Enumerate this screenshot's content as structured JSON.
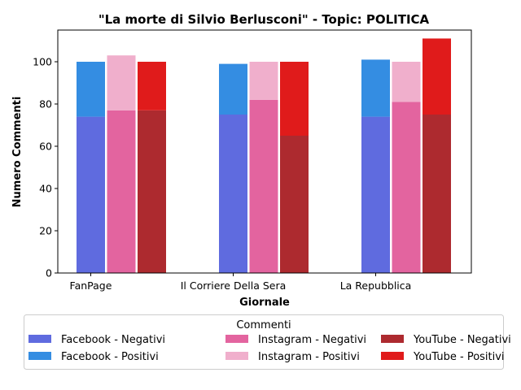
{
  "chart_data": {
    "type": "bar",
    "title": "\"La morte di Silvio Berlusconi\" - Topic: POLITICA",
    "xlabel": "Giornale",
    "ylabel": "Numero Commenti",
    "categories": [
      "FanPage",
      "Il Corriere Della Sera",
      "La Repubblica"
    ],
    "ylim": [
      0,
      115
    ],
    "yticks": [
      0,
      20,
      40,
      60,
      80,
      100
    ],
    "grid": false,
    "stacked_pairs": true,
    "groups": [
      {
        "name": "Facebook",
        "negative_color": "#5f6bdf",
        "positive_color": "#348de2"
      },
      {
        "name": "Instagram",
        "negative_color": "#e3649f",
        "positive_color": "#f0afcc"
      },
      {
        "name": "YouTube",
        "negative_color": "#ad2a2f",
        "positive_color": "#e01b1b"
      }
    ],
    "series": [
      {
        "name": "Facebook - Negativi",
        "group": 0,
        "kind": "negative",
        "values": [
          74,
          75,
          74
        ]
      },
      {
        "name": "Facebook - Positivi",
        "group": 0,
        "kind": "positive",
        "values": [
          26,
          24,
          27
        ]
      },
      {
        "name": "Instagram - Negativi",
        "group": 1,
        "kind": "negative",
        "values": [
          77,
          82,
          81
        ]
      },
      {
        "name": "Instagram - Positivi",
        "group": 1,
        "kind": "positive",
        "values": [
          26,
          18,
          19
        ]
      },
      {
        "name": "YouTube - Negativi",
        "group": 2,
        "kind": "negative",
        "values": [
          77,
          65,
          75
        ]
      },
      {
        "name": "YouTube - Positivi",
        "group": 2,
        "kind": "positive",
        "values": [
          23,
          35,
          36
        ]
      }
    ],
    "legend": {
      "title": "Commenti",
      "placement": "below-center",
      "columns": 3,
      "entries": [
        "Facebook - Negativi",
        "Facebook - Positivi",
        "Instagram - Negativi",
        "Instagram - Positivi",
        "YouTube - Negativi",
        "YouTube - Positivi"
      ]
    }
  }
}
